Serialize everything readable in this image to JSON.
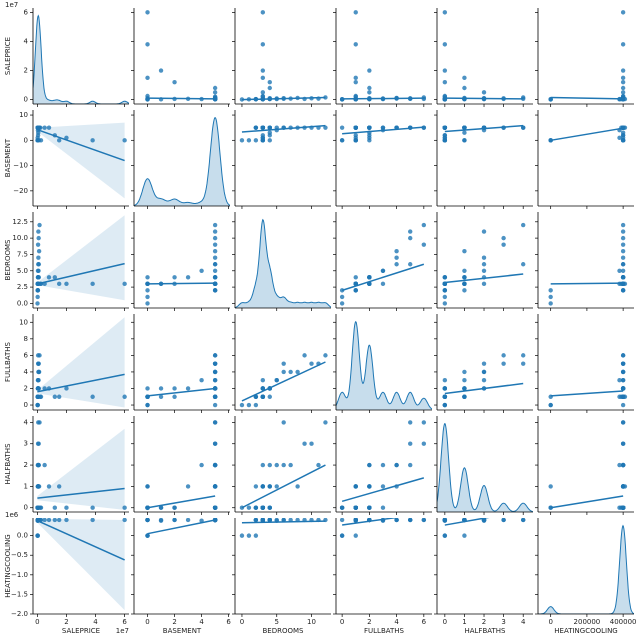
{
  "chart_data": {
    "type": "pairplot",
    "color": "#1f77b4",
    "variables": [
      {
        "name": "SALEPRICE",
        "xlim": [
          -0.3,
          6.3
        ],
        "xticks": [
          0,
          2,
          4,
          6
        ],
        "ylim": [
          -0.3,
          6.3
        ],
        "yticks": [
          0,
          2,
          4,
          6
        ],
        "x_offset_label": "1e7",
        "y_offset_label": "1e7"
      },
      {
        "name": "BASEMENT",
        "xlim": [
          -1,
          6.1
        ],
        "xticks": [
          0,
          2,
          4,
          6
        ],
        "ylim": [
          -26,
          12
        ],
        "yticks": [
          {
            "value": -20,
            "label": "−20"
          },
          {
            "value": -10,
            "label": "−10"
          },
          0,
          10
        ]
      },
      {
        "name": "BEDROOMS",
        "xlim": [
          -1,
          12.8
        ],
        "xticks": [
          0,
          5,
          10
        ],
        "ylim": [
          -0.7,
          14
        ],
        "yticks": [
          {
            "value": 0,
            "label": "0.0"
          },
          {
            "value": 2.5,
            "label": "2.5"
          },
          {
            "value": 5,
            "label": "5.0"
          },
          {
            "value": 7.5,
            "label": "7.5"
          },
          {
            "value": 10,
            "label": "10.0"
          },
          {
            "value": 12.5,
            "label": "12.5"
          }
        ]
      },
      {
        "name": "FULLBATHS",
        "xlim": [
          -0.45,
          6.6
        ],
        "xticks": [
          0,
          2,
          4,
          6
        ],
        "ylim": [
          -0.6,
          11
        ],
        "yticks": [
          0,
          2,
          4,
          6,
          8,
          10
        ]
      },
      {
        "name": "HALFBATHS",
        "xlim": [
          -0.4,
          4.5
        ],
        "xticks": [
          0,
          1,
          2,
          3,
          4
        ],
        "ylim": [
          -0.2,
          4.3
        ],
        "yticks": [
          0,
          1,
          2,
          3,
          4
        ]
      },
      {
        "name": "HEATINGCOOLING",
        "xlim": [
          -70000,
          460000
        ],
        "xticks": [
          0,
          200000,
          400000
        ],
        "ylim": [
          -2000000,
          450000
        ],
        "yticks": [
          {
            "value": -2000000,
            "label": "−2.0"
          },
          {
            "value": -1500000,
            "label": "−1.5"
          },
          {
            "value": -1000000,
            "label": "−1.0"
          },
          {
            "value": -500000,
            "label": "−0.5"
          },
          {
            "value": 0,
            "label": "0.0"
          }
        ],
        "y_offset_label": "1e6"
      }
    ],
    "rows": [
      [
        6.0,
        0,
        3,
        1,
        0,
        400000
      ],
      [
        3.8,
        0,
        3,
        1,
        0,
        400000
      ],
      [
        2.0,
        1,
        3,
        2,
        0,
        400000
      ],
      [
        1.5,
        0,
        3,
        1,
        1,
        400000
      ],
      [
        1.2,
        2,
        4,
        1,
        0,
        400000
      ],
      [
        0.8,
        5,
        4,
        2,
        1,
        400000
      ],
      [
        0.5,
        5,
        3,
        2,
        2,
        400000
      ],
      [
        0.03,
        5,
        3,
        1,
        0,
        400000
      ],
      [
        0.04,
        5,
        3,
        2,
        1,
        400000
      ],
      [
        0.05,
        5,
        4,
        2,
        1,
        400000
      ],
      [
        0.02,
        5,
        2,
        1,
        0,
        400000
      ],
      [
        0.06,
        5,
        3,
        1,
        1,
        400000
      ],
      [
        0.03,
        5,
        3,
        1,
        0,
        400000
      ],
      [
        0.05,
        5,
        4,
        2,
        0,
        400000
      ],
      [
        0.08,
        5,
        5,
        3,
        1,
        400000
      ],
      [
        0.1,
        5,
        6,
        4,
        2,
        400000
      ],
      [
        0.12,
        5,
        8,
        4,
        1,
        400000
      ],
      [
        0.15,
        5,
        12,
        6,
        4,
        400000
      ],
      [
        0.09,
        5,
        10,
        5,
        3,
        400000
      ],
      [
        0.07,
        5,
        7,
        4,
        2,
        400000
      ],
      [
        0.04,
        5,
        2,
        1,
        0,
        400000
      ],
      [
        0.02,
        0,
        1,
        0,
        0,
        0
      ],
      [
        0.01,
        0,
        0,
        0,
        0,
        0
      ],
      [
        0.03,
        0,
        2,
        1,
        1,
        0
      ],
      [
        0.02,
        1,
        3,
        1,
        0,
        380000
      ],
      [
        0.04,
        4,
        5,
        3,
        2,
        380000
      ],
      [
        0.06,
        3,
        4,
        2,
        1,
        400000
      ],
      [
        0.05,
        2,
        3,
        2,
        0,
        400000
      ],
      [
        0.03,
        5,
        3,
        1,
        0,
        390000
      ],
      [
        0.04,
        5,
        3,
        2,
        0,
        400000
      ],
      [
        0.05,
        5,
        9,
        6,
        3,
        400000
      ],
      [
        0.07,
        5,
        11,
        5,
        2,
        400000
      ],
      [
        0.03,
        5,
        2,
        0,
        0,
        400000
      ],
      [
        0.04,
        5,
        3,
        1,
        1,
        410000
      ],
      [
        0.2,
        5,
        3,
        1,
        0,
        400000
      ],
      [
        0.25,
        0,
        3,
        1,
        0,
        400000
      ],
      [
        0.1,
        0,
        4,
        2,
        0,
        400000
      ],
      [
        0.06,
        5,
        6,
        5,
        4,
        400000
      ],
      [
        0.05,
        5,
        3,
        3,
        0,
        400000
      ],
      [
        0.04,
        5,
        4,
        2,
        2,
        400000
      ]
    ],
    "regressions": [
      {
        "x": 1,
        "y": 0,
        "start": [
          0,
          0.1
        ],
        "end": [
          5,
          0.05
        ]
      },
      {
        "x": 2,
        "y": 0,
        "start": [
          0,
          0.0
        ],
        "end": [
          12,
          0.15
        ]
      },
      {
        "x": 3,
        "y": 0,
        "start": [
          0,
          0.05
        ],
        "end": [
          6,
          0.1
        ]
      },
      {
        "x": 4,
        "y": 0,
        "start": [
          0,
          0.1
        ],
        "end": [
          4,
          0.05
        ]
      },
      {
        "x": 5,
        "y": 0,
        "start": [
          0,
          0.15
        ],
        "end": [
          400000,
          0.05
        ]
      },
      {
        "x": 0,
        "y": 1,
        "start": [
          0,
          4.2
        ],
        "end": [
          6,
          -8
        ],
        "band": [
          [
            3.5,
            5
          ],
          [
            -23,
            7
          ]
        ]
      },
      {
        "x": 2,
        "y": 1,
        "start": [
          0,
          3.3
        ],
        "end": [
          12,
          5.8
        ]
      },
      {
        "x": 3,
        "y": 1,
        "start": [
          0,
          2.6
        ],
        "end": [
          6,
          5.2
        ]
      },
      {
        "x": 4,
        "y": 1,
        "start": [
          0,
          3.5
        ],
        "end": [
          4,
          5.8
        ]
      },
      {
        "x": 5,
        "y": 1,
        "start": [
          0,
          0
        ],
        "end": [
          400000,
          4.8
        ]
      },
      {
        "x": 0,
        "y": 2,
        "start": [
          0,
          3.0
        ],
        "end": [
          6,
          6.1
        ],
        "band": [
          [
            2.8,
            3.2
          ],
          [
            0.5,
            13.5
          ]
        ]
      },
      {
        "x": 1,
        "y": 2,
        "start": [
          0,
          3.0
        ],
        "end": [
          5,
          3.1
        ]
      },
      {
        "x": 3,
        "y": 2,
        "start": [
          0,
          2.0
        ],
        "end": [
          6,
          6.0
        ]
      },
      {
        "x": 4,
        "y": 2,
        "start": [
          0,
          3.2
        ],
        "end": [
          4,
          4.5
        ]
      },
      {
        "x": 5,
        "y": 2,
        "start": [
          0,
          3.0
        ],
        "end": [
          400000,
          3.1
        ]
      },
      {
        "x": 0,
        "y": 3,
        "start": [
          0,
          1.6
        ],
        "end": [
          6,
          3.7
        ],
        "band": [
          [
            1.4,
            1.8
          ],
          [
            -0.3,
            10.6
          ]
        ]
      },
      {
        "x": 1,
        "y": 3,
        "start": [
          0,
          1.1
        ],
        "end": [
          5,
          2.0
        ]
      },
      {
        "x": 2,
        "y": 3,
        "start": [
          0,
          0.5
        ],
        "end": [
          12,
          5.2
        ]
      },
      {
        "x": 4,
        "y": 3,
        "start": [
          0,
          1.4
        ],
        "end": [
          4,
          2.6
        ]
      },
      {
        "x": 5,
        "y": 3,
        "start": [
          0,
          1.1
        ],
        "end": [
          400000,
          1.7
        ]
      },
      {
        "x": 0,
        "y": 4,
        "start": [
          0,
          0.45
        ],
        "end": [
          6,
          0.9
        ],
        "band": [
          [
            0.35,
            0.55
          ],
          [
            -0.1,
            3.7
          ]
        ]
      },
      {
        "x": 1,
        "y": 4,
        "start": [
          0,
          0
        ],
        "end": [
          5,
          0.55
        ]
      },
      {
        "x": 2,
        "y": 4,
        "start": [
          0,
          0
        ],
        "end": [
          12,
          2.0
        ]
      },
      {
        "x": 3,
        "y": 4,
        "start": [
          0,
          0.3
        ],
        "end": [
          6,
          1.4
        ]
      },
      {
        "x": 5,
        "y": 4,
        "start": [
          0,
          0
        ],
        "end": [
          400000,
          0.55
        ]
      },
      {
        "x": 0,
        "y": 5,
        "start": [
          0,
          380000
        ],
        "end": [
          6,
          -620000
        ],
        "band": [
          [
            330000,
            430000
          ],
          [
            -1900000,
            400000
          ]
        ]
      },
      {
        "x": 1,
        "y": 5,
        "start": [
          0,
          50000
        ],
        "end": [
          5,
          400000
        ]
      },
      {
        "x": 2,
        "y": 5,
        "start": [
          0,
          330000
        ],
        "end": [
          12,
          370000
        ]
      },
      {
        "x": 3,
        "y": 5,
        "start": [
          0,
          270000
        ],
        "end": [
          6,
          560000
        ]
      },
      {
        "x": 4,
        "y": 5,
        "start": [
          0,
          270000
        ],
        "end": [
          4,
          620000
        ]
      }
    ]
  }
}
